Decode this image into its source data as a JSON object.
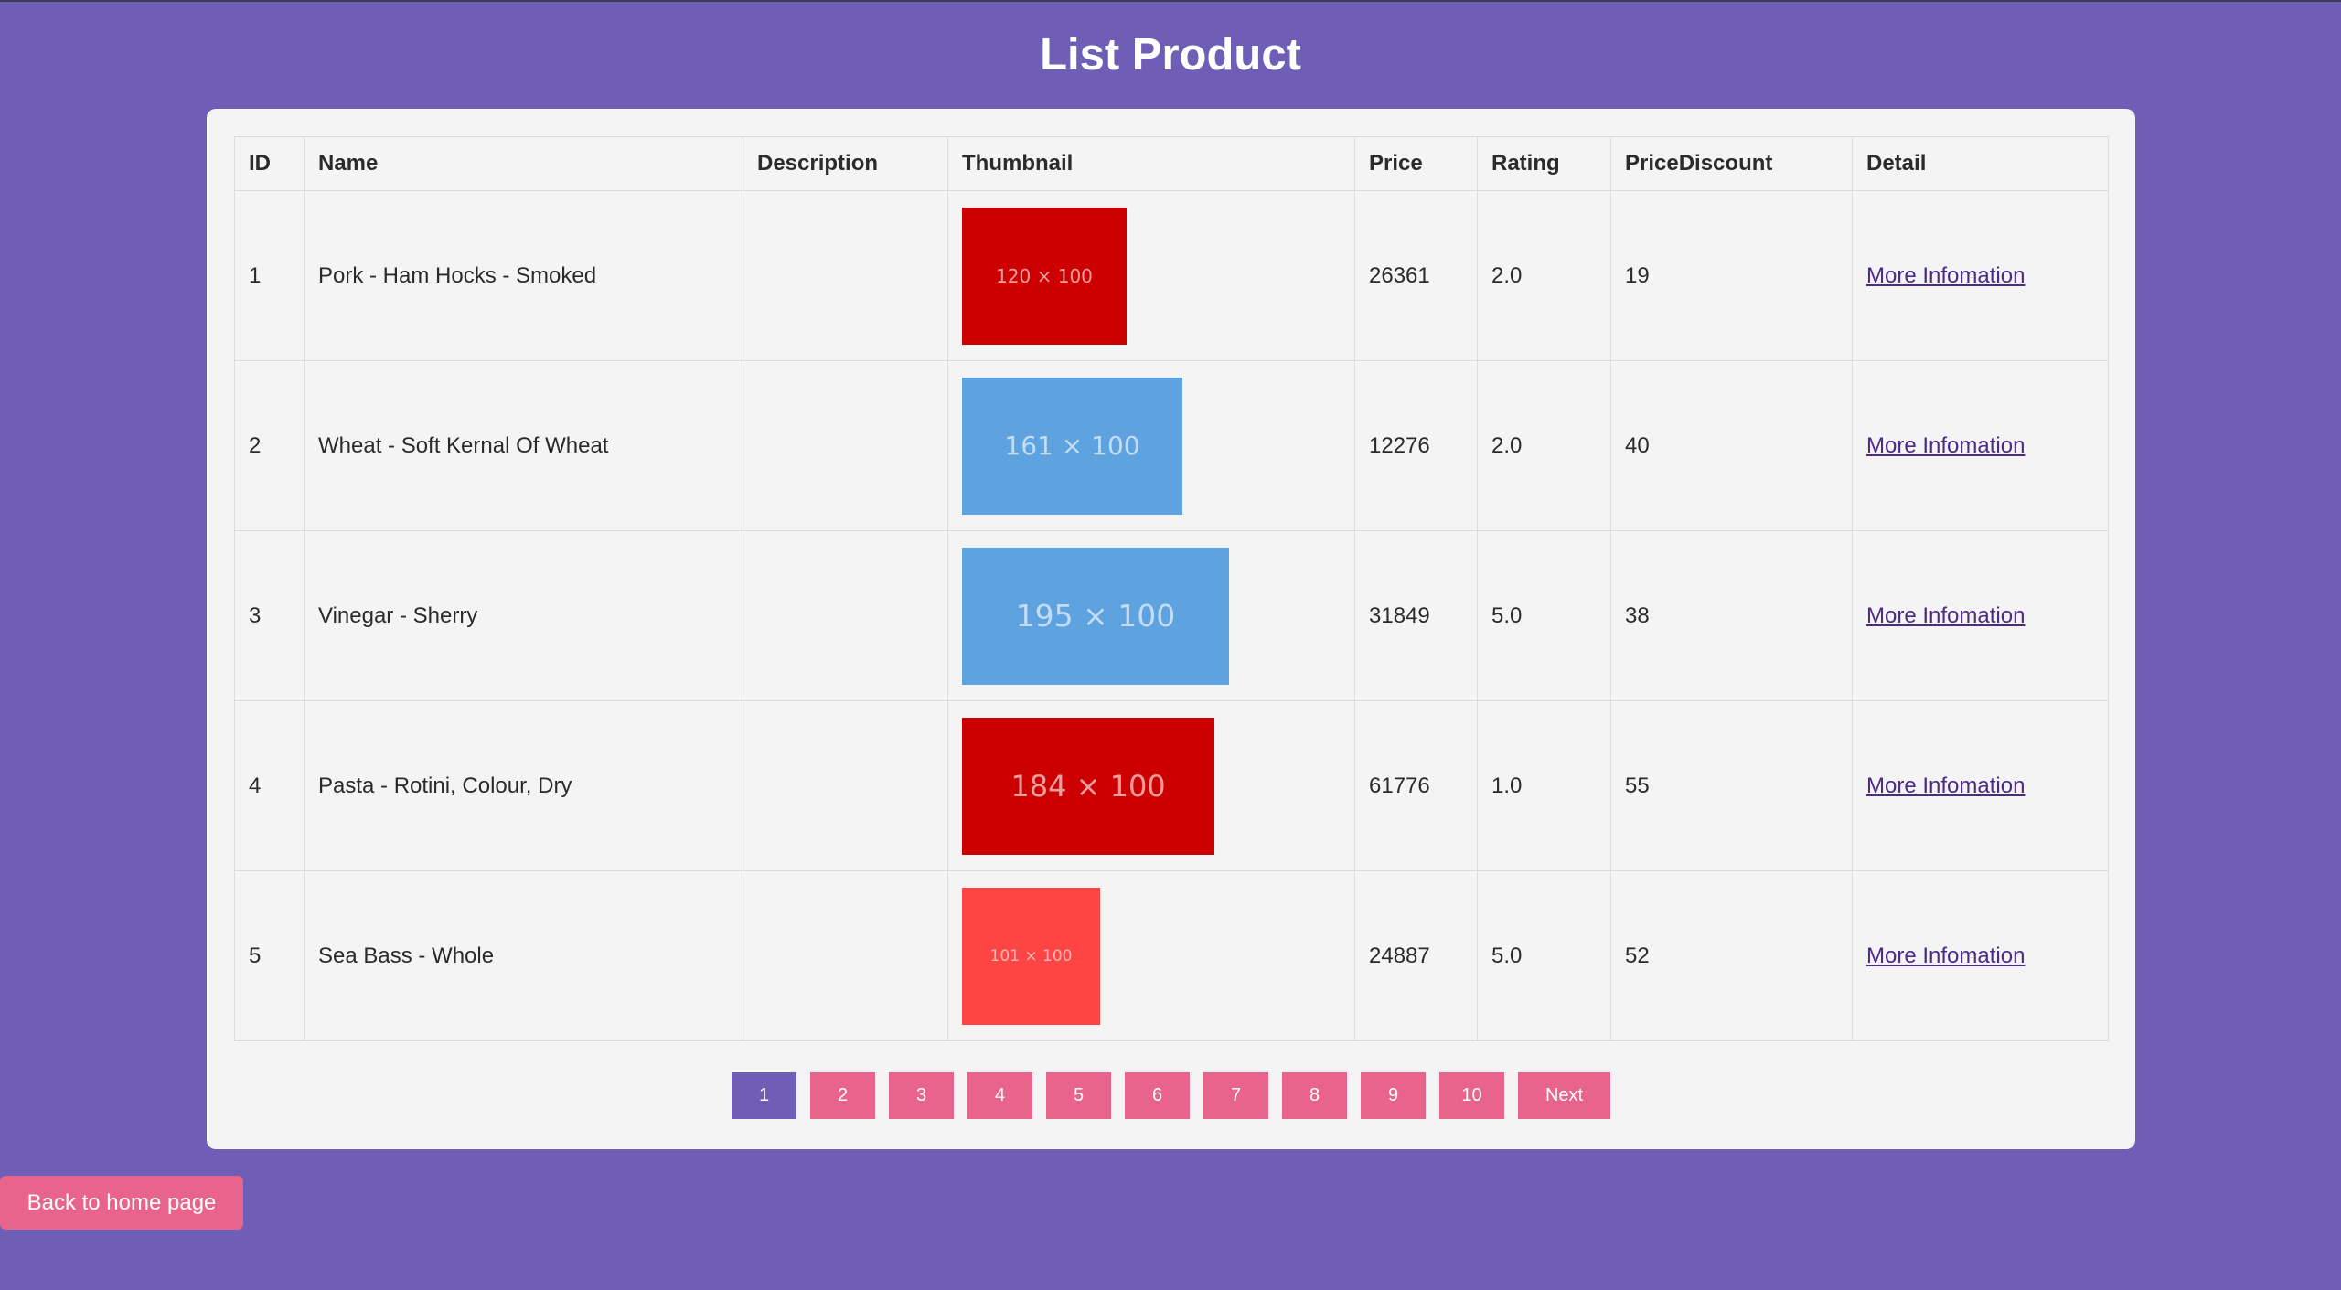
{
  "page": {
    "title": "List Product",
    "back_label": "Back to home page"
  },
  "colors": {
    "background": "#6f5eb5",
    "card": "#f4f4f4",
    "accent_pink": "#e8648d",
    "active_page": "#6f5eb5",
    "link": "#4b2a8a"
  },
  "table": {
    "headers": [
      "ID",
      "Name",
      "Description",
      "Thumbnail",
      "Price",
      "Rating",
      "PriceDiscount",
      "Detail"
    ],
    "rows": [
      {
        "id": "1",
        "name": "Pork - Ham Hocks - Smoked",
        "description": "",
        "thumb_label": "120 × 100",
        "thumb_color": "#cc0000",
        "price": "26361",
        "rating": "2.0",
        "discount": "19",
        "detail": "More Infomation"
      },
      {
        "id": "2",
        "name": "Wheat - Soft Kernal Of Wheat",
        "description": "",
        "thumb_label": "161 × 100",
        "thumb_color": "#5ea2e0",
        "price": "12276",
        "rating": "2.0",
        "discount": "40",
        "detail": "More Infomation"
      },
      {
        "id": "3",
        "name": "Vinegar - Sherry",
        "description": "",
        "thumb_label": "195 × 100",
        "thumb_color": "#5ea2e0",
        "price": "31849",
        "rating": "5.0",
        "discount": "38",
        "detail": "More Infomation"
      },
      {
        "id": "4",
        "name": "Pasta - Rotini, Colour, Dry",
        "description": "",
        "thumb_label": "184 × 100",
        "thumb_color": "#cc0000",
        "price": "61776",
        "rating": "1.0",
        "discount": "55",
        "detail": "More Infomation"
      },
      {
        "id": "5",
        "name": "Sea Bass - Whole",
        "description": "",
        "thumb_label": "101 × 100",
        "thumb_color": "#ff4444",
        "price": "24887",
        "rating": "5.0",
        "discount": "52",
        "detail": "More Infomation"
      }
    ]
  },
  "pagination": {
    "pages": [
      "1",
      "2",
      "3",
      "4",
      "5",
      "6",
      "7",
      "8",
      "9",
      "10"
    ],
    "active": "1",
    "next_label": "Next"
  }
}
